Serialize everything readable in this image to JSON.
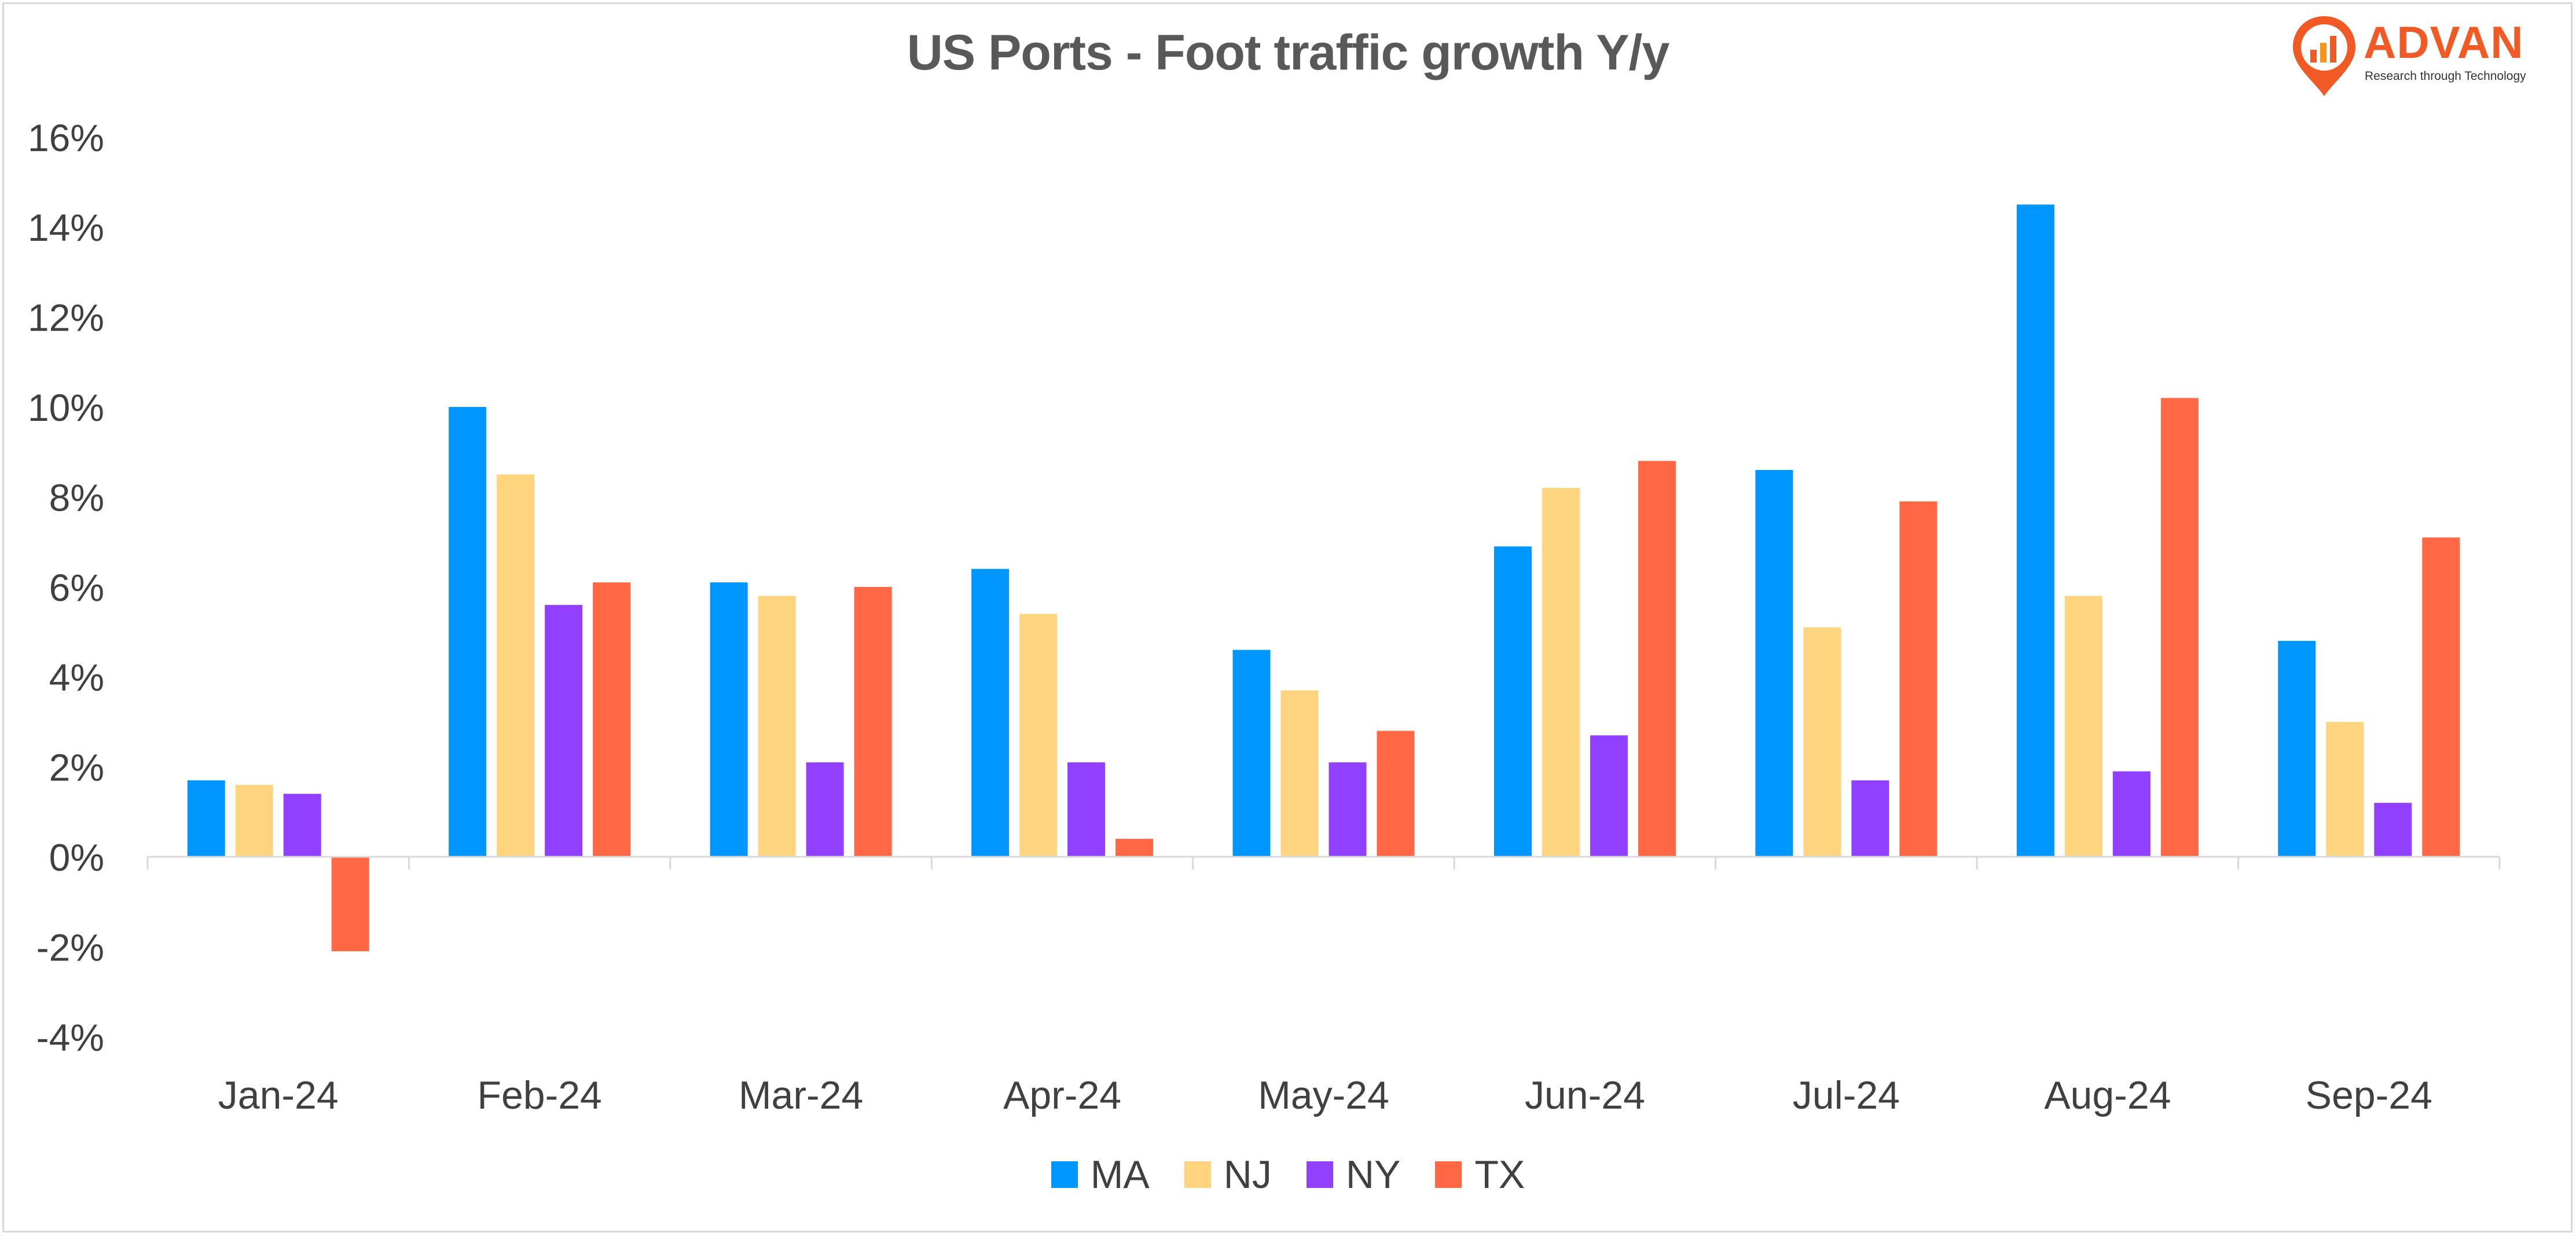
{
  "brand": {
    "name": "ADVAN",
    "tagline": "Research through Technology",
    "color": "#f15a24"
  },
  "chart_data": {
    "type": "bar",
    "title": "US Ports - Foot traffic growth Y/y",
    "xlabel": "",
    "ylabel": "",
    "categories": [
      "Jan-24",
      "Feb-24",
      "Mar-24",
      "Apr-24",
      "May-24",
      "Jun-24",
      "Jul-24",
      "Aug-24",
      "Sep-24"
    ],
    "series": [
      {
        "name": "MA",
        "color": "#0096ff",
        "values": [
          1.7,
          10.0,
          6.1,
          6.4,
          4.6,
          6.9,
          8.6,
          14.5,
          4.8
        ]
      },
      {
        "name": "NJ",
        "color": "#ffd47e",
        "values": [
          1.6,
          8.5,
          5.8,
          5.4,
          3.7,
          8.2,
          5.1,
          5.8,
          3.0
        ]
      },
      {
        "name": "NY",
        "color": "#9140ff",
        "values": [
          1.4,
          5.6,
          2.1,
          2.1,
          2.1,
          2.7,
          1.7,
          1.9,
          1.2
        ]
      },
      {
        "name": "TX",
        "color": "#ff6745",
        "values": [
          -2.1,
          6.1,
          6.0,
          0.4,
          2.8,
          8.8,
          7.9,
          10.2,
          7.1
        ]
      }
    ],
    "ylim": [
      -4,
      16
    ],
    "yticks": [
      -4,
      -2,
      0,
      2,
      4,
      6,
      8,
      10,
      12,
      14,
      16
    ],
    "ytick_format": "percent",
    "grid": false,
    "legend_position": "bottom"
  }
}
